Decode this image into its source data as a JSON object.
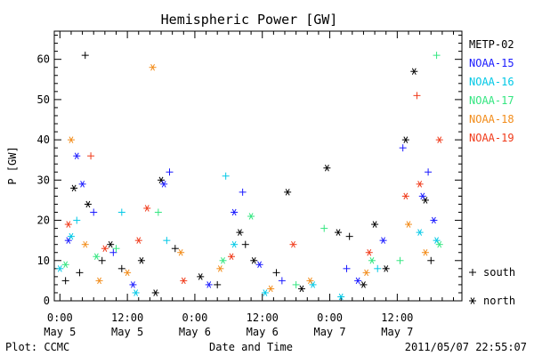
{
  "chart_data": {
    "type": "scatter",
    "title": "Hemispheric Power [GW]",
    "xlabel": "Date and Time",
    "ylabel": "P [GW]",
    "xlim": [
      "2011-05-04 23:00",
      "2011-05-07 23:30"
    ],
    "ylim": [
      0,
      67
    ],
    "y_ticks": [
      0,
      10,
      20,
      30,
      40,
      50,
      60
    ],
    "x_ticks": [
      {
        "time": "2011-05-05 00:00",
        "line1": "0:00",
        "line2": "May 5"
      },
      {
        "time": "2011-05-05 12:00",
        "line1": "12:00",
        "line2": "May 5"
      },
      {
        "time": "2011-05-06 00:00",
        "line1": "0:00",
        "line2": "May 6"
      },
      {
        "time": "2011-05-06 12:00",
        "line1": "12:00",
        "line2": "May 6"
      },
      {
        "time": "2011-05-07 00:00",
        "line1": "0:00",
        "line2": "May 7"
      },
      {
        "time": "2011-05-07 12:00",
        "line1": "12:00",
        "line2": "May 7"
      }
    ],
    "grid": false,
    "legend_position": "right",
    "markers": {
      "south": "+",
      "north": "*"
    },
    "series": [
      {
        "name": "METP-02",
        "color": "#000000",
        "points": [
          {
            "x": "2011-05-05 01:00",
            "y": 5,
            "h": "south"
          },
          {
            "x": "2011-05-05 02:30",
            "y": 28,
            "h": "north"
          },
          {
            "x": "2011-05-05 03:30",
            "y": 7,
            "h": "south"
          },
          {
            "x": "2011-05-05 04:30",
            "y": 61,
            "h": "south"
          },
          {
            "x": "2011-05-05 05:00",
            "y": 24,
            "h": "north"
          },
          {
            "x": "2011-05-05 07:30",
            "y": 10,
            "h": "south"
          },
          {
            "x": "2011-05-05 09:00",
            "y": 14,
            "h": "north"
          },
          {
            "x": "2011-05-05 11:00",
            "y": 8,
            "h": "south"
          },
          {
            "x": "2011-05-05 14:30",
            "y": 10,
            "h": "north"
          },
          {
            "x": "2011-05-05 17:00",
            "y": 2,
            "h": "north"
          },
          {
            "x": "2011-05-05 18:00",
            "y": 30,
            "h": "north"
          },
          {
            "x": "2011-05-05 20:30",
            "y": 13,
            "h": "south"
          },
          {
            "x": "2011-05-06 01:00",
            "y": 6,
            "h": "north"
          },
          {
            "x": "2011-05-06 04:00",
            "y": 4,
            "h": "south"
          },
          {
            "x": "2011-05-06 08:00",
            "y": 17,
            "h": "north"
          },
          {
            "x": "2011-05-06 09:00",
            "y": 14,
            "h": "south"
          },
          {
            "x": "2011-05-06 10:30",
            "y": 10,
            "h": "north"
          },
          {
            "x": "2011-05-06 14:30",
            "y": 7,
            "h": "south"
          },
          {
            "x": "2011-05-06 16:30",
            "y": 27,
            "h": "north"
          },
          {
            "x": "2011-05-06 19:00",
            "y": 3,
            "h": "north"
          },
          {
            "x": "2011-05-06 23:30",
            "y": 33,
            "h": "north"
          },
          {
            "x": "2011-05-07 01:30",
            "y": 17,
            "h": "north"
          },
          {
            "x": "2011-05-07 03:30",
            "y": 16,
            "h": "south"
          },
          {
            "x": "2011-05-07 06:00",
            "y": 4,
            "h": "north"
          },
          {
            "x": "2011-05-07 08:00",
            "y": 19,
            "h": "north"
          },
          {
            "x": "2011-05-07 10:00",
            "y": 8,
            "h": "north"
          },
          {
            "x": "2011-05-07 13:30",
            "y": 40,
            "h": "north"
          },
          {
            "x": "2011-05-07 15:00",
            "y": 57,
            "h": "north"
          },
          {
            "x": "2011-05-07 17:00",
            "y": 25,
            "h": "north"
          },
          {
            "x": "2011-05-07 18:00",
            "y": 10,
            "h": "south"
          }
        ]
      },
      {
        "name": "NOAA-15",
        "color": "#1a1aff",
        "points": [
          {
            "x": "2011-05-05 01:30",
            "y": 15,
            "h": "north"
          },
          {
            "x": "2011-05-05 03:00",
            "y": 36,
            "h": "north"
          },
          {
            "x": "2011-05-05 04:00",
            "y": 29,
            "h": "north"
          },
          {
            "x": "2011-05-05 06:00",
            "y": 22,
            "h": "south"
          },
          {
            "x": "2011-05-05 09:30",
            "y": 12,
            "h": "south"
          },
          {
            "x": "2011-05-05 13:00",
            "y": 4,
            "h": "north"
          },
          {
            "x": "2011-05-05 18:30",
            "y": 29,
            "h": "north"
          },
          {
            "x": "2011-05-05 19:30",
            "y": 32,
            "h": "south"
          },
          {
            "x": "2011-05-06 02:30",
            "y": 4,
            "h": "north"
          },
          {
            "x": "2011-05-06 07:00",
            "y": 22,
            "h": "north"
          },
          {
            "x": "2011-05-06 08:30",
            "y": 27,
            "h": "south"
          },
          {
            "x": "2011-05-06 11:30",
            "y": 9,
            "h": "north"
          },
          {
            "x": "2011-05-06 15:30",
            "y": 5,
            "h": "south"
          },
          {
            "x": "2011-05-07 03:00",
            "y": 8,
            "h": "south"
          },
          {
            "x": "2011-05-07 05:00",
            "y": 5,
            "h": "north"
          },
          {
            "x": "2011-05-07 09:30",
            "y": 15,
            "h": "north"
          },
          {
            "x": "2011-05-07 13:00",
            "y": 38,
            "h": "south"
          },
          {
            "x": "2011-05-07 16:30",
            "y": 26,
            "h": "north"
          },
          {
            "x": "2011-05-07 17:30",
            "y": 32,
            "h": "south"
          },
          {
            "x": "2011-05-07 18:30",
            "y": 20,
            "h": "north"
          }
        ]
      },
      {
        "name": "NOAA-16",
        "color": "#00c8e6",
        "points": [
          {
            "x": "2011-05-05 00:00",
            "y": 8,
            "h": "north"
          },
          {
            "x": "2011-05-05 02:00",
            "y": 16,
            "h": "north"
          },
          {
            "x": "2011-05-05 03:00",
            "y": 20,
            "h": "south"
          },
          {
            "x": "2011-05-05 11:00",
            "y": 22,
            "h": "south"
          },
          {
            "x": "2011-05-05 13:30",
            "y": 2,
            "h": "north"
          },
          {
            "x": "2011-05-05 19:00",
            "y": 15,
            "h": "south"
          },
          {
            "x": "2011-05-06 05:30",
            "y": 31,
            "h": "south"
          },
          {
            "x": "2011-05-06 07:00",
            "y": 14,
            "h": "north"
          },
          {
            "x": "2011-05-06 12:30",
            "y": 2,
            "h": "north"
          },
          {
            "x": "2011-05-06 21:00",
            "y": 4,
            "h": "north"
          },
          {
            "x": "2011-05-07 02:00",
            "y": 1,
            "h": "north"
          },
          {
            "x": "2011-05-07 08:30",
            "y": 8,
            "h": "south"
          },
          {
            "x": "2011-05-07 16:00",
            "y": 17,
            "h": "north"
          },
          {
            "x": "2011-05-07 19:00",
            "y": 15,
            "h": "north"
          }
        ]
      },
      {
        "name": "NOAA-17",
        "color": "#33e680",
        "points": [
          {
            "x": "2011-05-05 01:00",
            "y": 9,
            "h": "north"
          },
          {
            "x": "2011-05-05 06:30",
            "y": 11,
            "h": "north"
          },
          {
            "x": "2011-05-05 10:00",
            "y": 13,
            "h": "south"
          },
          {
            "x": "2011-05-05 17:30",
            "y": 22,
            "h": "south"
          },
          {
            "x": "2011-05-06 05:00",
            "y": 10,
            "h": "north"
          },
          {
            "x": "2011-05-06 10:00",
            "y": 21,
            "h": "north"
          },
          {
            "x": "2011-05-06 18:00",
            "y": 4,
            "h": "south"
          },
          {
            "x": "2011-05-06 23:00",
            "y": 18,
            "h": "south"
          },
          {
            "x": "2011-05-07 07:30",
            "y": 10,
            "h": "north"
          },
          {
            "x": "2011-05-07 12:30",
            "y": 10,
            "h": "south"
          },
          {
            "x": "2011-05-07 19:00",
            "y": 61,
            "h": "south"
          },
          {
            "x": "2011-05-07 19:30",
            "y": 14,
            "h": "north"
          }
        ]
      },
      {
        "name": "NOAA-18",
        "color": "#f28c1a",
        "points": [
          {
            "x": "2011-05-05 02:00",
            "y": 40,
            "h": "north"
          },
          {
            "x": "2011-05-05 04:30",
            "y": 14,
            "h": "north"
          },
          {
            "x": "2011-05-05 07:00",
            "y": 5,
            "h": "north"
          },
          {
            "x": "2011-05-05 12:00",
            "y": 7,
            "h": "north"
          },
          {
            "x": "2011-05-05 16:30",
            "y": 58,
            "h": "north"
          },
          {
            "x": "2011-05-05 21:30",
            "y": 12,
            "h": "north"
          },
          {
            "x": "2011-05-06 04:30",
            "y": 8,
            "h": "north"
          },
          {
            "x": "2011-05-06 13:30",
            "y": 3,
            "h": "north"
          },
          {
            "x": "2011-05-06 20:30",
            "y": 5,
            "h": "north"
          },
          {
            "x": "2011-05-07 06:30",
            "y": 7,
            "h": "north"
          },
          {
            "x": "2011-05-07 14:00",
            "y": 19,
            "h": "north"
          },
          {
            "x": "2011-05-07 17:00",
            "y": 12,
            "h": "north"
          }
        ]
      },
      {
        "name": "NOAA-19",
        "color": "#f03a1a",
        "points": [
          {
            "x": "2011-05-05 01:30",
            "y": 19,
            "h": "north"
          },
          {
            "x": "2011-05-05 05:30",
            "y": 36,
            "h": "south"
          },
          {
            "x": "2011-05-05 08:00",
            "y": 13,
            "h": "north"
          },
          {
            "x": "2011-05-05 14:00",
            "y": 15,
            "h": "north"
          },
          {
            "x": "2011-05-05 15:30",
            "y": 23,
            "h": "north"
          },
          {
            "x": "2011-05-05 22:00",
            "y": 5,
            "h": "north"
          },
          {
            "x": "2011-05-06 06:30",
            "y": 11,
            "h": "north"
          },
          {
            "x": "2011-05-06 17:30",
            "y": 14,
            "h": "north"
          },
          {
            "x": "2011-05-07 07:00",
            "y": 12,
            "h": "north"
          },
          {
            "x": "2011-05-07 13:30",
            "y": 26,
            "h": "north"
          },
          {
            "x": "2011-05-07 15:30",
            "y": 51,
            "h": "south"
          },
          {
            "x": "2011-05-07 16:00",
            "y": 29,
            "h": "north"
          },
          {
            "x": "2011-05-07 19:30",
            "y": 40,
            "h": "north"
          }
        ]
      }
    ]
  },
  "legend_symbols": {
    "south_symbol": "+",
    "south_label": "south",
    "north_symbol": "*",
    "north_label": "north"
  },
  "footer": {
    "left": "Plot: CCMC",
    "right": "2011/05/07 22:55:07"
  }
}
